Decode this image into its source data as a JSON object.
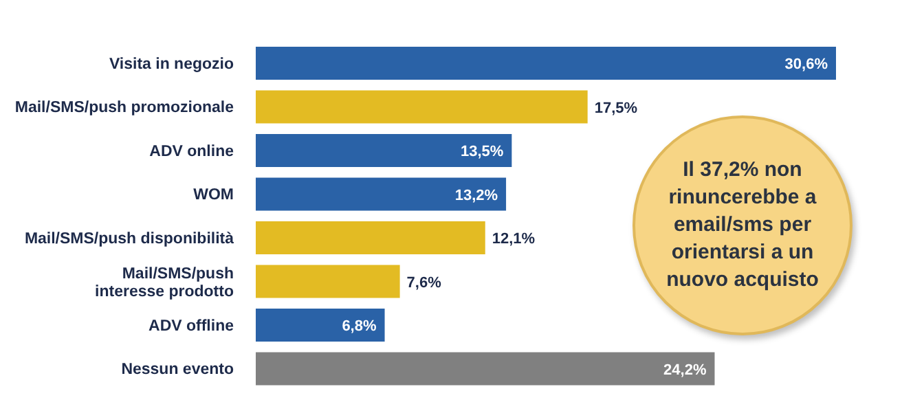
{
  "chart_data": {
    "type": "bar",
    "orientation": "horizontal",
    "categories": [
      "Visita in negozio",
      "Mail/SMS/push promozionale",
      "ADV online",
      "WOM",
      "Mail/SMS/push disponibilità",
      "Mail/SMS/push interesse prodotto",
      "ADV offline",
      "Nessun evento"
    ],
    "values": [
      30.6,
      17.5,
      13.5,
      13.2,
      12.1,
      7.6,
      6.8,
      24.2
    ],
    "colors": [
      "#2a62a7",
      "#e3bb23",
      "#2a62a7",
      "#2a62a7",
      "#e3bb23",
      "#e3bb23",
      "#2a62a7",
      "#808080"
    ],
    "value_labels": [
      "30,6%",
      "17,5%",
      "13,5%",
      "13,2%",
      "12,1%",
      "7,6%",
      "6,8%",
      "24,2%"
    ],
    "tick_labels": "y",
    "annotations": [
      "Il 37,2% non rinuncerebbe a email/sms per orientarsi a un nuovo acquisto"
    ]
  }
}
